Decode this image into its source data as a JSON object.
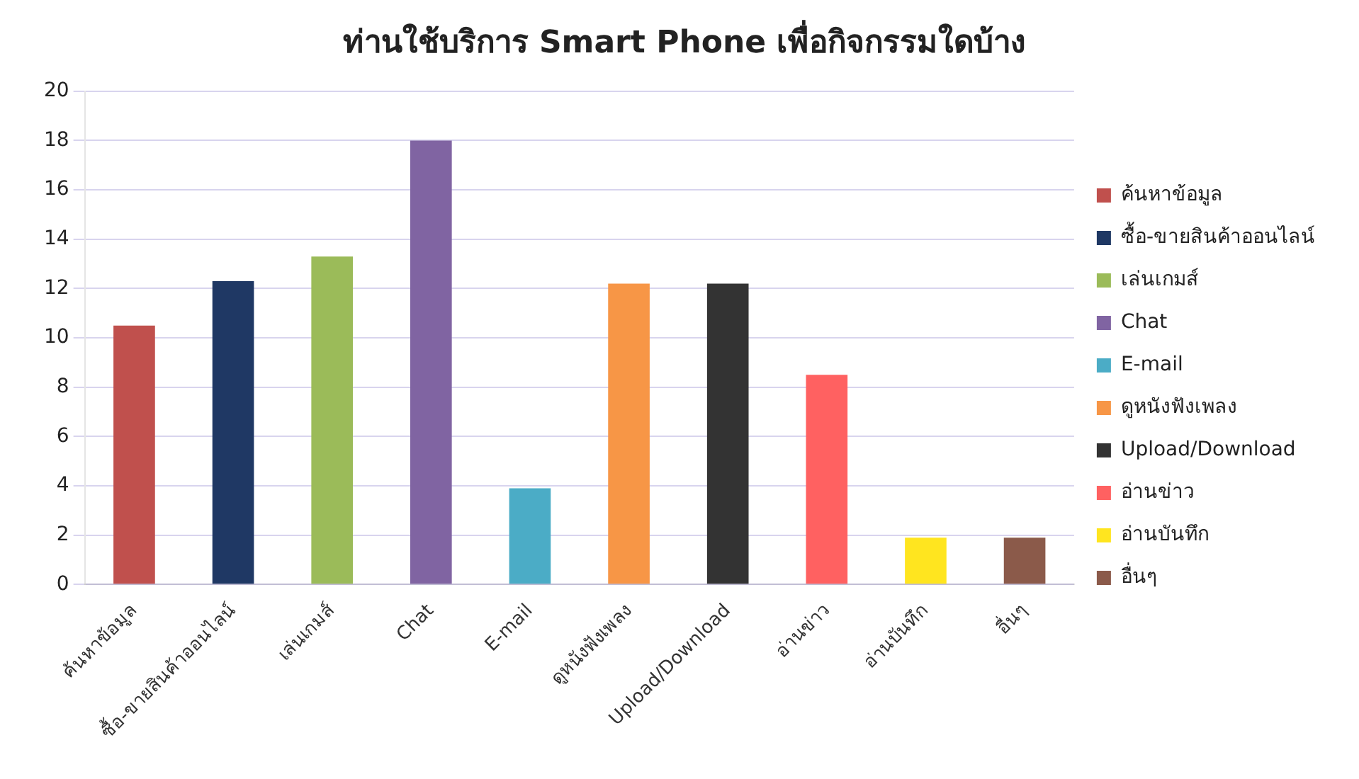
{
  "chart_data": {
    "type": "bar",
    "title": "ท่านใช้บริการ Smart Phone เพื่อกิจกรรมใดบ้าง",
    "categories": [
      "ค้นหาข้อมูล",
      "ซื้อ-ขายสินค้าออนไลน์",
      "เล่นเกมส์",
      "Chat",
      "E-mail",
      "ดูหนังฟังเพลง",
      "Upload/Download",
      "อ่านข่าว",
      "อ่านบันทึก",
      "อื่นๆ"
    ],
    "series": [
      {
        "name": "ค้นหาข้อมูล",
        "color": "#c0504d",
        "values": [
          10.5,
          null,
          null,
          null,
          null,
          null,
          null,
          null,
          null,
          null
        ]
      },
      {
        "name": "ซื้อ-ขายสินค้าออนไลน์",
        "color": "#1f3864",
        "values": [
          null,
          12.3,
          null,
          null,
          null,
          null,
          null,
          null,
          null,
          null
        ]
      },
      {
        "name": "เล่นเกมส์",
        "color": "#9bbb59",
        "values": [
          null,
          null,
          13.3,
          null,
          null,
          null,
          null,
          null,
          null,
          null
        ]
      },
      {
        "name": "Chat",
        "color": "#8064a2",
        "values": [
          null,
          null,
          null,
          18,
          null,
          null,
          null,
          null,
          null,
          null
        ]
      },
      {
        "name": "E-mail",
        "color": "#4bacc6",
        "values": [
          null,
          null,
          null,
          null,
          3.9,
          null,
          null,
          null,
          null,
          null
        ]
      },
      {
        "name": "ดูหนังฟังเพลง",
        "color": "#f79646",
        "values": [
          null,
          null,
          null,
          null,
          null,
          12.2,
          null,
          null,
          null,
          null
        ]
      },
      {
        "name": "Upload/Download",
        "color": "#333333",
        "values": [
          null,
          null,
          null,
          null,
          null,
          null,
          12.2,
          null,
          null,
          null
        ]
      },
      {
        "name": "อ่านข่าว",
        "color": "#ff6161",
        "values": [
          null,
          null,
          null,
          null,
          null,
          null,
          null,
          8.5,
          null,
          null
        ]
      },
      {
        "name": "อ่านบันทึก",
        "color": "#ffe51f",
        "values": [
          null,
          null,
          null,
          null,
          null,
          null,
          null,
          null,
          1.9,
          null
        ]
      },
      {
        "name": "อื่นๆ",
        "color": "#8b5a4a",
        "values": [
          null,
          null,
          null,
          null,
          null,
          null,
          null,
          null,
          null,
          1.9
        ]
      }
    ],
    "ylim": [
      0,
      20
    ],
    "yticks": [
      0,
      2,
      4,
      6,
      8,
      10,
      12,
      14,
      16,
      18,
      20
    ],
    "grid": "y",
    "legend": "right"
  }
}
